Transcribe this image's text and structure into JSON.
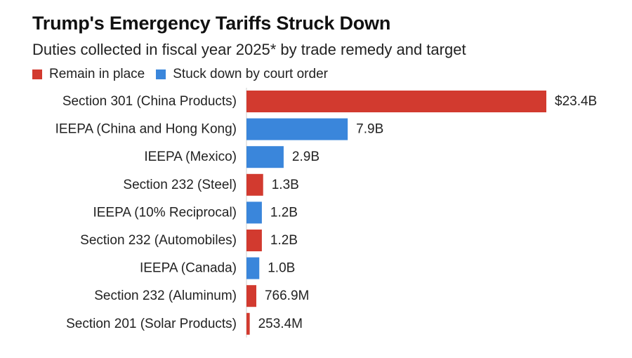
{
  "chart_data": {
    "type": "bar",
    "orientation": "horizontal",
    "title": "Trump's Emergency Tariffs Struck Down",
    "subtitle": "Duties collected in fiscal year 2025* by trade remedy and target",
    "legend": [
      {
        "key": "remain",
        "label": "Remain in place",
        "color": "#d23a2f"
      },
      {
        "key": "struck",
        "label": "Stuck down by court order",
        "color": "#3a86db"
      }
    ],
    "xlim": [
      0,
      23.4
    ],
    "unit": "billions USD",
    "bars": [
      {
        "category": "Section 301 (China Products)",
        "value": 23.4,
        "label": "$23.4B",
        "status": "remain"
      },
      {
        "category": "IEEPA (China and Hong Kong)",
        "value": 7.9,
        "label": "7.9B",
        "status": "struck"
      },
      {
        "category": "IEEPA (Mexico)",
        "value": 2.9,
        "label": "2.9B",
        "status": "struck"
      },
      {
        "category": "Section 232 (Steel)",
        "value": 1.3,
        "label": "1.3B",
        "status": "remain"
      },
      {
        "category": "IEEPA (10% Reciprocal)",
        "value": 1.2,
        "label": "1.2B",
        "status": "struck"
      },
      {
        "category": "Section 232 (Automobiles)",
        "value": 1.2,
        "label": "1.2B",
        "status": "remain"
      },
      {
        "category": "IEEPA (Canada)",
        "value": 1.0,
        "label": "1.0B",
        "status": "struck"
      },
      {
        "category": "Section 232 (Aluminum)",
        "value": 0.7669,
        "label": "766.9M",
        "status": "remain"
      },
      {
        "category": "Section 201 (Solar Products)",
        "value": 0.2534,
        "label": "253.4M",
        "status": "remain"
      }
    ]
  }
}
